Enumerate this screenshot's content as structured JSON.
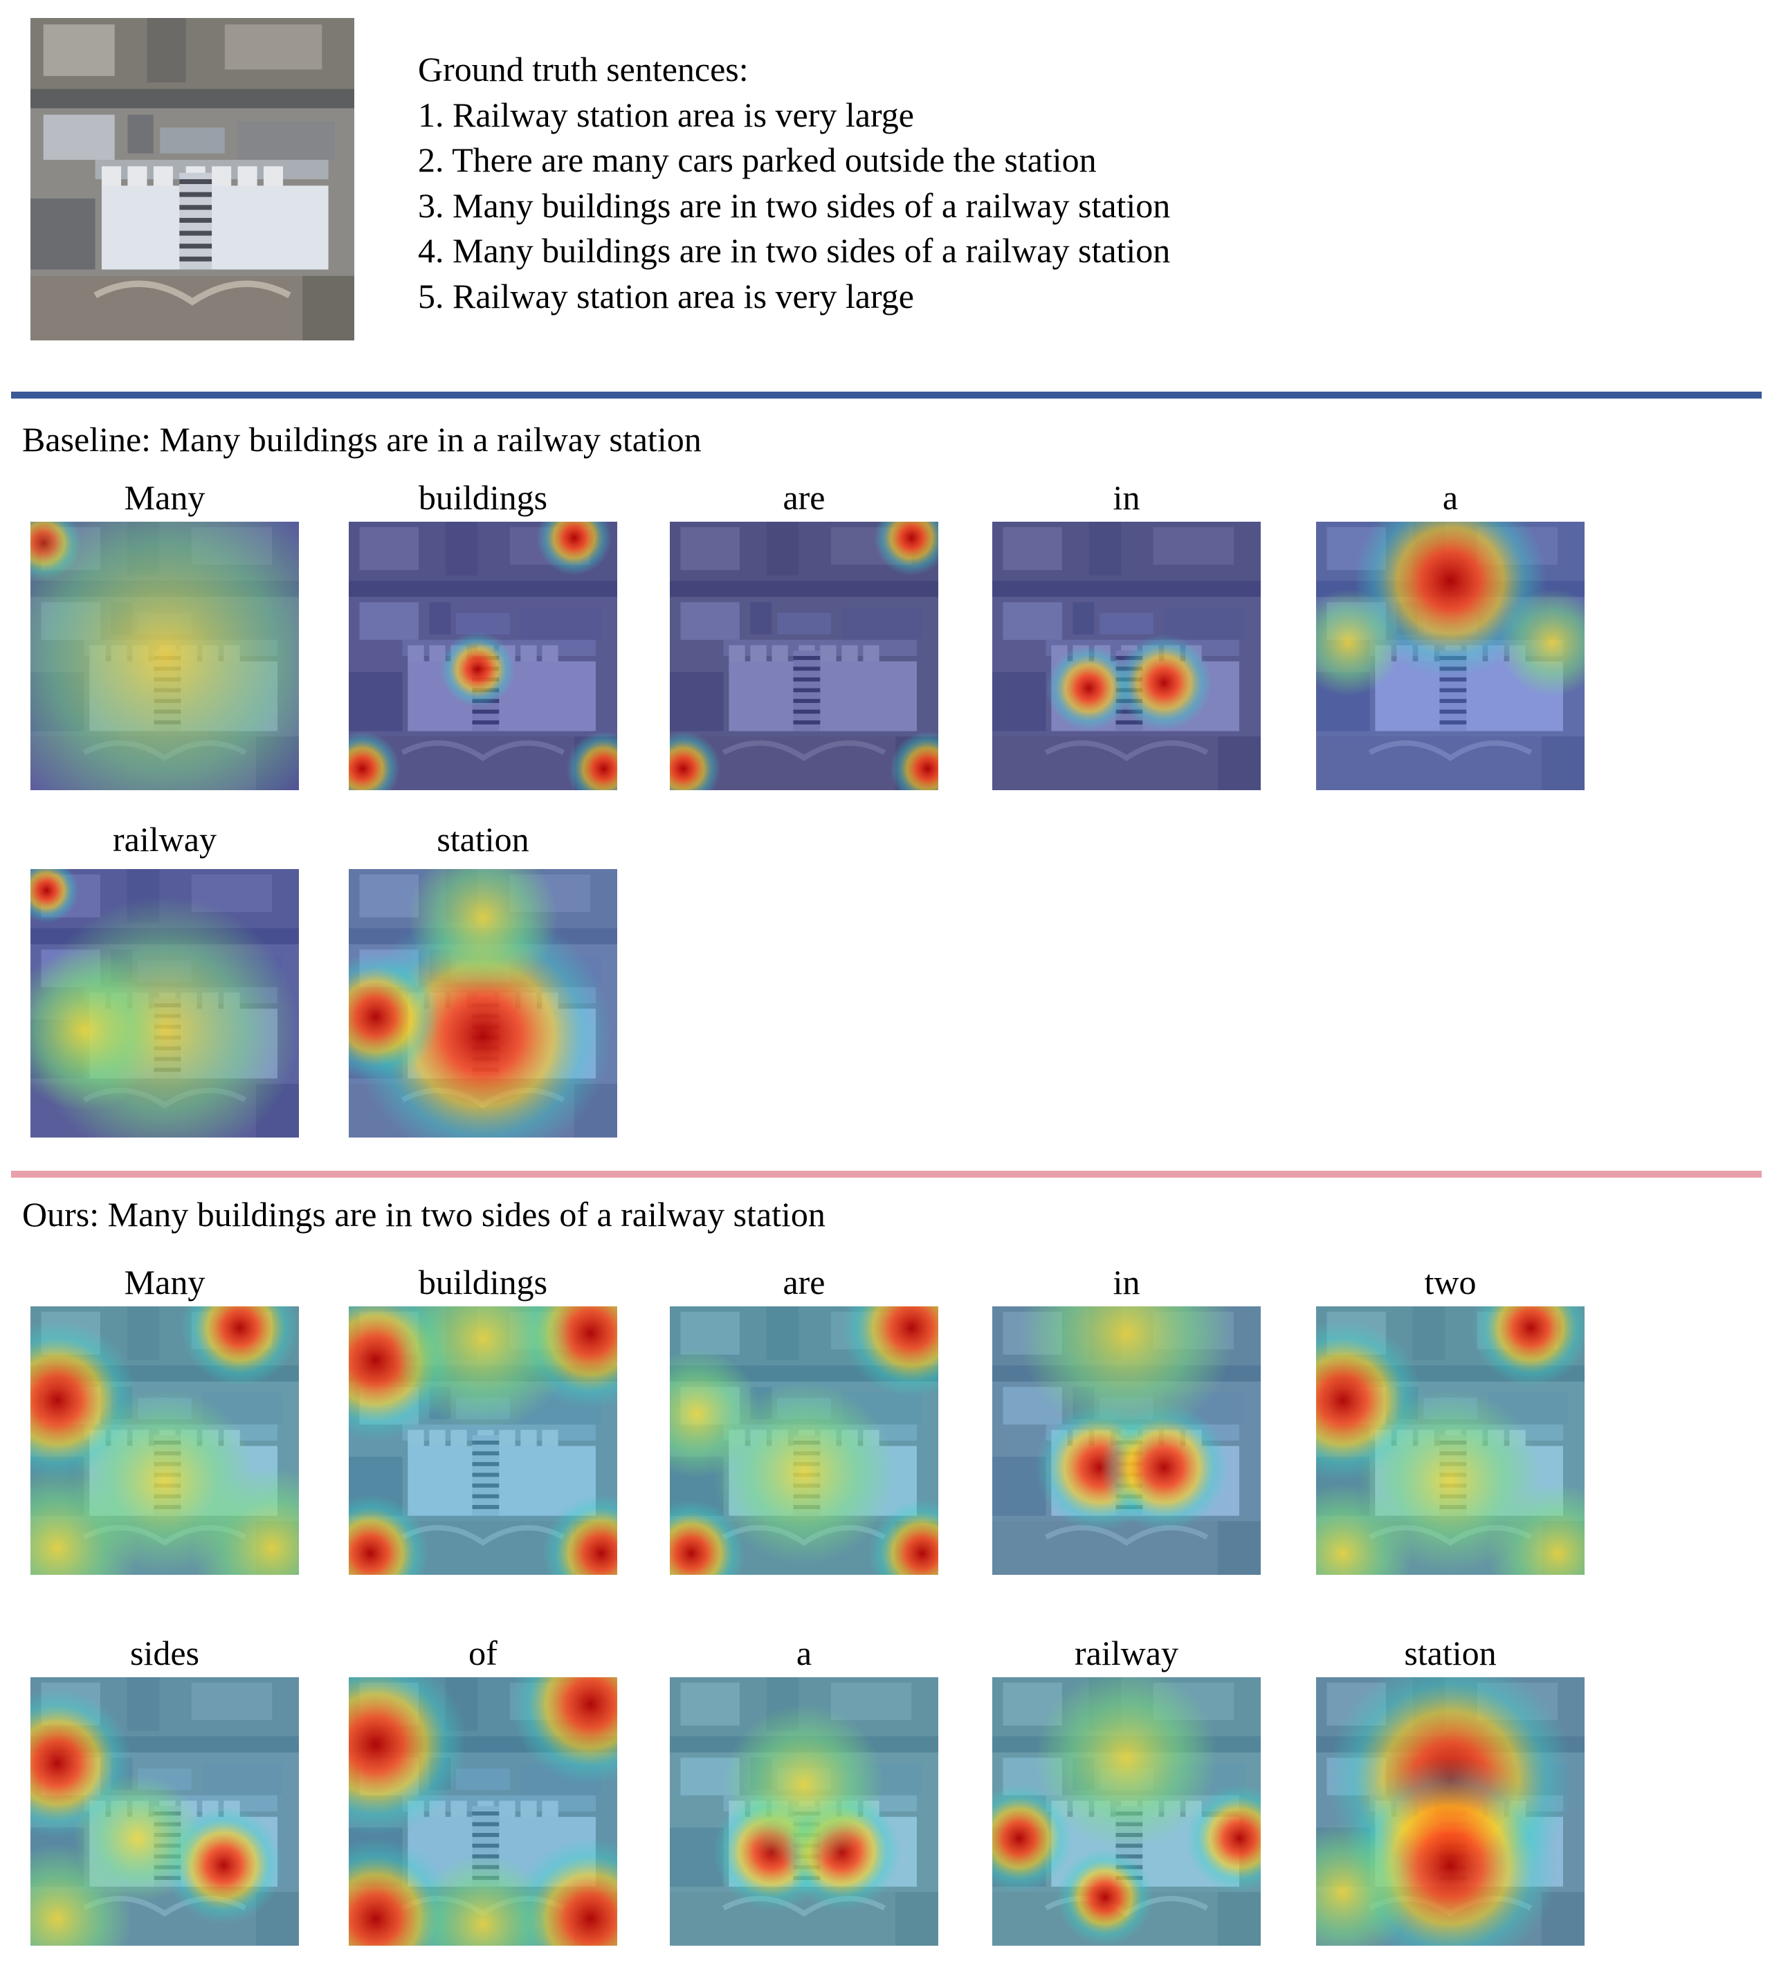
{
  "ground_truth": {
    "heading": "Ground truth  sentences:",
    "sentences": [
      "1. Railway station area is very large",
      "2. There are many cars parked outside the station",
      "3. Many buildings are in two sides of a railway station",
      "4. Many buildings are in two sides of a railway station",
      "5. Railway station area is very large"
    ]
  },
  "colors": {
    "baseline_rule": "#3b5998",
    "ours_rule": "#e8a0aa"
  },
  "baseline": {
    "caption": "Baseline: Many buildings are in a railway station",
    "words": [
      "Many",
      "buildings",
      "are",
      "in",
      "a",
      "railway",
      "station"
    ]
  },
  "ours": {
    "caption": "Ours: Many buildings are in two sides of a railway station",
    "words": [
      "Many",
      "buildings",
      "are",
      "in",
      "two",
      "sides",
      "of",
      "a",
      "railway",
      "station"
    ]
  }
}
